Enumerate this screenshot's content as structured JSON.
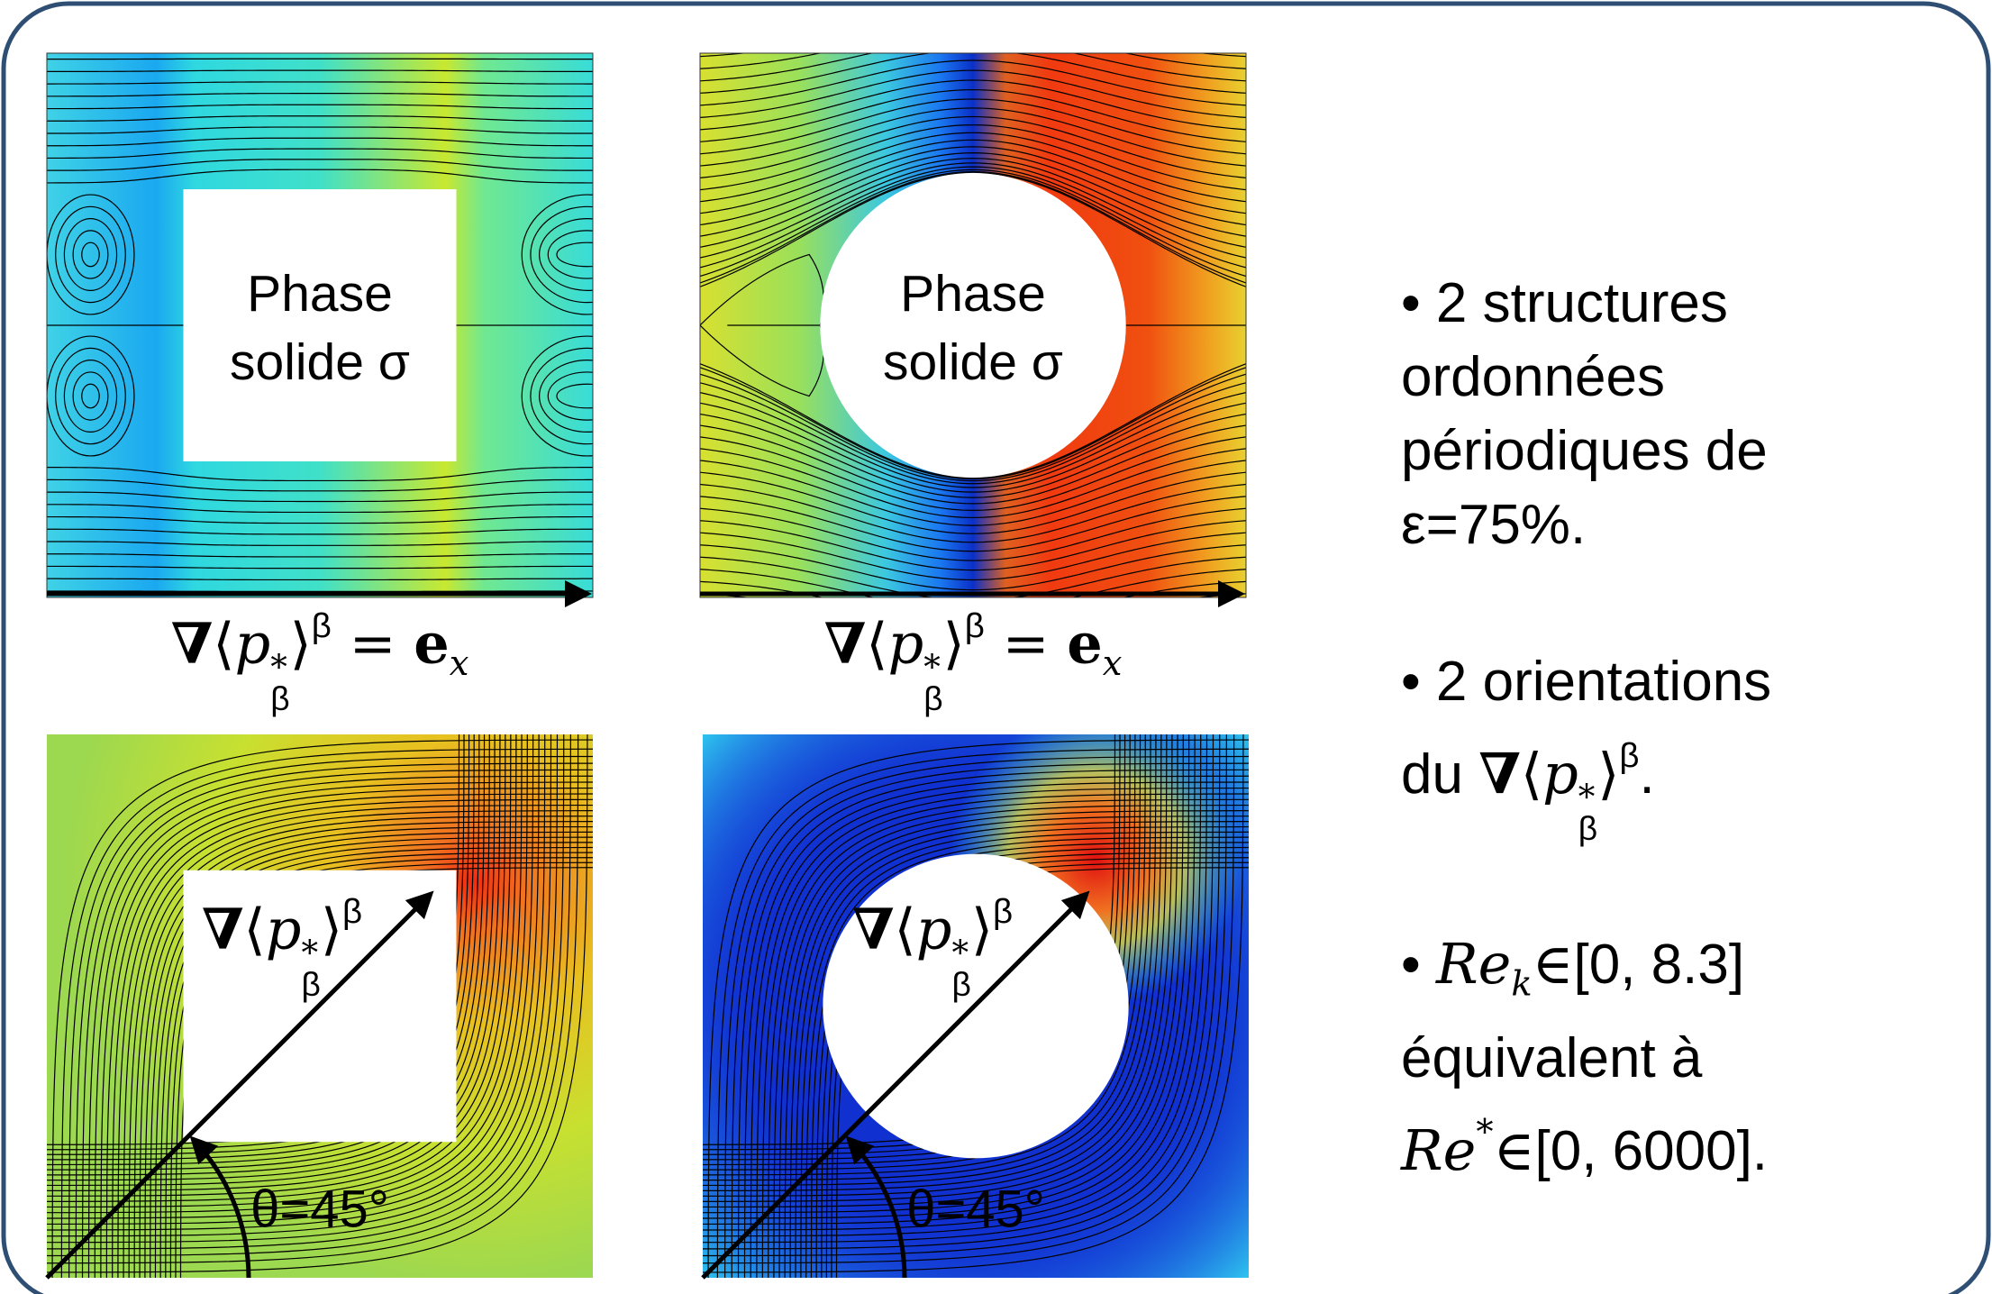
{
  "panels": [
    {
      "label": [
        "Phase",
        "solide σ"
      ],
      "caption": [
        {
          "text": "∇",
          "style": "m b"
        },
        {
          "text": "⟨",
          "style": "m"
        },
        {
          "text": "p",
          "style": "m i"
        },
        {
          "sup": "*",
          "sub": "β",
          "style": "m"
        },
        {
          "text": "⟩",
          "style": "m"
        },
        {
          "text": "β",
          "style": "sup"
        },
        {
          "text": " = ",
          "style": "m"
        },
        {
          "text": "e",
          "style": "m b"
        },
        {
          "text": "x",
          "style": "m i sub"
        }
      ]
    },
    {
      "label": [
        "Phase",
        "solide σ"
      ],
      "caption": [
        {
          "text": "∇",
          "style": "m b"
        },
        {
          "text": "⟨",
          "style": "m"
        },
        {
          "text": "p",
          "style": "m i"
        },
        {
          "sup": "*",
          "sub": "β",
          "style": "m"
        },
        {
          "text": "⟩",
          "style": "m"
        },
        {
          "text": "β",
          "style": "sup"
        },
        {
          "text": " = ",
          "style": "m"
        },
        {
          "text": "e",
          "style": "m b"
        },
        {
          "text": "x",
          "style": "m i sub"
        }
      ]
    },
    {
      "label": [
        {
          "text": "∇",
          "style": "m b"
        },
        {
          "text": "⟨",
          "style": "m"
        },
        {
          "text": "p",
          "style": "m i"
        },
        {
          "sup": "*",
          "sub": "β",
          "style": "m"
        },
        {
          "text": "⟩",
          "style": "m"
        },
        {
          "text": "β",
          "style": "sup"
        }
      ],
      "angle": "θ=45°"
    },
    {
      "label": [
        {
          "text": "∇",
          "style": "m b"
        },
        {
          "text": "⟨",
          "style": "m"
        },
        {
          "text": "p",
          "style": "m i"
        },
        {
          "sup": "*",
          "sub": "β",
          "style": "m"
        },
        {
          "text": "⟩",
          "style": "m"
        },
        {
          "text": "β",
          "style": "sup"
        }
      ],
      "angle": "θ=45°"
    }
  ],
  "bullets": [
    [
      [
        {
          "text": "• 2 structures"
        }
      ],
      [
        {
          "text": "ordonnées"
        }
      ],
      [
        {
          "text": "périodiques de"
        }
      ],
      [
        {
          "text": "ε=75%."
        }
      ]
    ],
    [
      [
        {
          "text": "• 2 orientations"
        }
      ],
      [
        {
          "text": "du "
        },
        {
          "text": "∇",
          "style": "m b"
        },
        {
          "text": "⟨",
          "style": "m"
        },
        {
          "text": "p",
          "style": "m i"
        },
        {
          "sup": "*",
          "sub": "β",
          "style": "m"
        },
        {
          "text": "⟩",
          "style": "m"
        },
        {
          "text": "β",
          "style": "sup"
        },
        {
          "text": "."
        }
      ]
    ],
    [
      [
        {
          "text": "• "
        },
        {
          "text": "Re",
          "style": "m i"
        },
        {
          "text": "k",
          "style": "m i sub"
        },
        {
          "text": "∈",
          "style": "m"
        },
        {
          "text": "[0, 8.3]"
        }
      ],
      [
        {
          "text": "équivalent à"
        }
      ],
      [
        {
          "text": "Re",
          "style": "m i"
        },
        {
          "text": "*",
          "style": "m sup"
        },
        {
          "text": "∈",
          "style": "m"
        },
        {
          "text": "[0, 6000]."
        }
      ]
    ]
  ]
}
